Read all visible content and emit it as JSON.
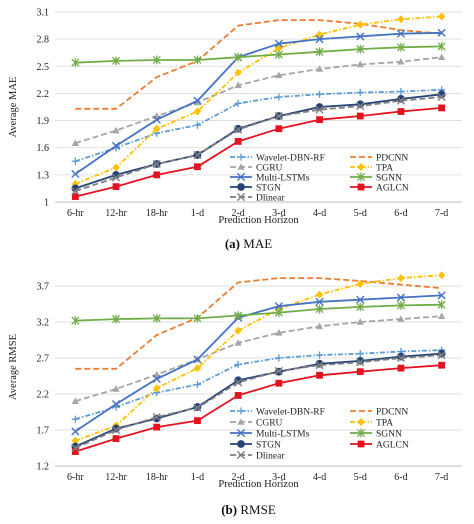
{
  "chart_data": [
    {
      "type": "line",
      "caption_letter": "(a)",
      "caption_text": "MAE",
      "xlabel": "Prediction Horizon",
      "ylabel": "Average MAE",
      "categories": [
        "6-hr",
        "12-hr",
        "18-hr",
        "1-d",
        "2-d",
        "3-d",
        "4-d",
        "5-d",
        "6-d",
        "7-d"
      ],
      "ylim": [
        1,
        3.1
      ],
      "yticks": [
        "1",
        "1.3",
        "1.6",
        "1.9",
        "2.2",
        "2.5",
        "2.8",
        "3.1"
      ],
      "grid": "horizontal",
      "legend_placement": "bottom-right",
      "series": [
        {
          "name": "Wavelet-DBN-RF",
          "color": "#5b9bd5",
          "dash": "dash-dot",
          "marker": "plus",
          "values": [
            1.45,
            1.6,
            1.76,
            1.85,
            2.09,
            2.16,
            2.19,
            2.21,
            2.22,
            2.24
          ]
        },
        {
          "name": "PDCNN",
          "color": "#ed7d31",
          "dash": "dash",
          "marker": "none",
          "values": [
            2.03,
            2.03,
            2.38,
            2.56,
            2.95,
            3.01,
            3.01,
            2.97,
            2.9,
            2.86
          ]
        },
        {
          "name": "CGRU",
          "color": "#a5a5a5",
          "dash": "dash",
          "marker": "triangle",
          "values": [
            1.65,
            1.79,
            1.95,
            2.1,
            2.29,
            2.4,
            2.47,
            2.52,
            2.55,
            2.6
          ]
        },
        {
          "name": "TPA",
          "color": "#ffc000",
          "dash": "dash-dot",
          "marker": "diamond",
          "values": [
            1.2,
            1.38,
            1.81,
            2.0,
            2.43,
            2.7,
            2.85,
            2.96,
            3.02,
            3.05
          ]
        },
        {
          "name": "Multi-LSTMs",
          "color": "#4472c4",
          "dash": "solid",
          "marker": "x",
          "values": [
            1.31,
            1.62,
            1.91,
            2.12,
            2.6,
            2.75,
            2.8,
            2.83,
            2.86,
            2.87
          ]
        },
        {
          "name": "SGNN",
          "color": "#70ad47",
          "dash": "solid",
          "marker": "star",
          "values": [
            2.54,
            2.56,
            2.57,
            2.57,
            2.6,
            2.63,
            2.66,
            2.69,
            2.71,
            2.72
          ]
        },
        {
          "name": "STGN",
          "color": "#264478",
          "dash": "solid",
          "marker": "circle",
          "values": [
            1.15,
            1.3,
            1.42,
            1.52,
            1.81,
            1.95,
            2.05,
            2.08,
            2.14,
            2.19
          ]
        },
        {
          "name": "AGLCN",
          "color": "#e3121f",
          "dash": "solid",
          "marker": "square",
          "values": [
            1.06,
            1.17,
            1.3,
            1.39,
            1.67,
            1.81,
            1.91,
            1.95,
            2.0,
            2.04
          ]
        },
        {
          "name": "Dlinear",
          "color": "#7f7f7f",
          "dash": "dash",
          "marker": "x",
          "values": [
            1.12,
            1.27,
            1.42,
            1.52,
            1.8,
            1.95,
            2.02,
            2.06,
            2.12,
            2.16
          ]
        }
      ]
    },
    {
      "type": "line",
      "caption_letter": "(b)",
      "caption_text": "RMSE",
      "xlabel": "Prediction Horizon",
      "ylabel": "Average RMSE",
      "categories": [
        "6-hr",
        "12-hr",
        "18-hr",
        "1-d",
        "2-d",
        "3-d",
        "4-d",
        "5-d",
        "6-d",
        "7-d"
      ],
      "ylim": [
        1.2,
        3.95
      ],
      "yticks": [
        "1.2",
        "1.7",
        "2.2",
        "2.7",
        "3.2",
        "3.7"
      ],
      "grid": "horizontal",
      "legend_placement": "bottom-right",
      "series": [
        {
          "name": "Wavelet-DBN-RF",
          "color": "#5b9bd5",
          "dash": "dash-dot",
          "marker": "plus",
          "values": [
            1.85,
            2.02,
            2.22,
            2.33,
            2.61,
            2.7,
            2.74,
            2.76,
            2.79,
            2.81
          ]
        },
        {
          "name": "PDCNN",
          "color": "#ed7d31",
          "dash": "dash",
          "marker": "none",
          "values": [
            2.55,
            2.55,
            3.02,
            3.26,
            3.75,
            3.81,
            3.81,
            3.77,
            3.72,
            3.67
          ]
        },
        {
          "name": "CGRU",
          "color": "#a5a5a5",
          "dash": "dash",
          "marker": "triangle",
          "values": [
            2.1,
            2.27,
            2.47,
            2.68,
            2.91,
            3.05,
            3.14,
            3.2,
            3.24,
            3.28
          ]
        },
        {
          "name": "TPA",
          "color": "#ffc000",
          "dash": "dash-dot",
          "marker": "diamond",
          "values": [
            1.55,
            1.76,
            2.28,
            2.56,
            3.08,
            3.38,
            3.58,
            3.73,
            3.81,
            3.85
          ]
        },
        {
          "name": "Multi-LSTMs",
          "color": "#4472c4",
          "dash": "solid",
          "marker": "x",
          "values": [
            1.68,
            2.06,
            2.41,
            2.68,
            3.26,
            3.42,
            3.48,
            3.51,
            3.54,
            3.57
          ]
        },
        {
          "name": "SGNN",
          "color": "#70ad47",
          "dash": "solid",
          "marker": "star",
          "values": [
            3.22,
            3.24,
            3.25,
            3.25,
            3.29,
            3.33,
            3.38,
            3.41,
            3.43,
            3.44
          ]
        },
        {
          "name": "STGN",
          "color": "#264478",
          "dash": "solid",
          "marker": "circle",
          "values": [
            1.47,
            1.72,
            1.86,
            2.02,
            2.39,
            2.51,
            2.62,
            2.66,
            2.72,
            2.76
          ]
        },
        {
          "name": "AGLCN",
          "color": "#e3121f",
          "dash": "solid",
          "marker": "square",
          "values": [
            1.4,
            1.58,
            1.74,
            1.83,
            2.18,
            2.35,
            2.46,
            2.51,
            2.56,
            2.6
          ]
        },
        {
          "name": "Dlinear",
          "color": "#7f7f7f",
          "dash": "dash",
          "marker": "x",
          "values": [
            1.45,
            1.7,
            1.88,
            2.01,
            2.36,
            2.52,
            2.6,
            2.64,
            2.7,
            2.74
          ]
        }
      ]
    }
  ]
}
